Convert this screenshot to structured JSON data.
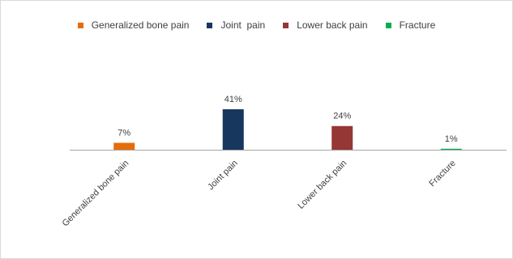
{
  "chart_data": {
    "type": "bar",
    "categories": [
      "Generalized bone pain",
      "Joint  pain",
      "Lower back pain",
      "Fracture"
    ],
    "values": [
      7,
      41,
      24,
      1
    ],
    "data_labels": [
      "7%",
      "41%",
      "24%",
      "1%"
    ],
    "unit": "%",
    "colors": [
      "#e46c0a",
      "#17375e",
      "#953735",
      "#00b050"
    ],
    "legend": {
      "placement": "top",
      "entries": [
        "Generalized bone pain",
        "Joint  pain",
        "Lower back pain",
        "Fracture"
      ]
    },
    "grid": false,
    "ylim": [
      0,
      50
    ]
  }
}
